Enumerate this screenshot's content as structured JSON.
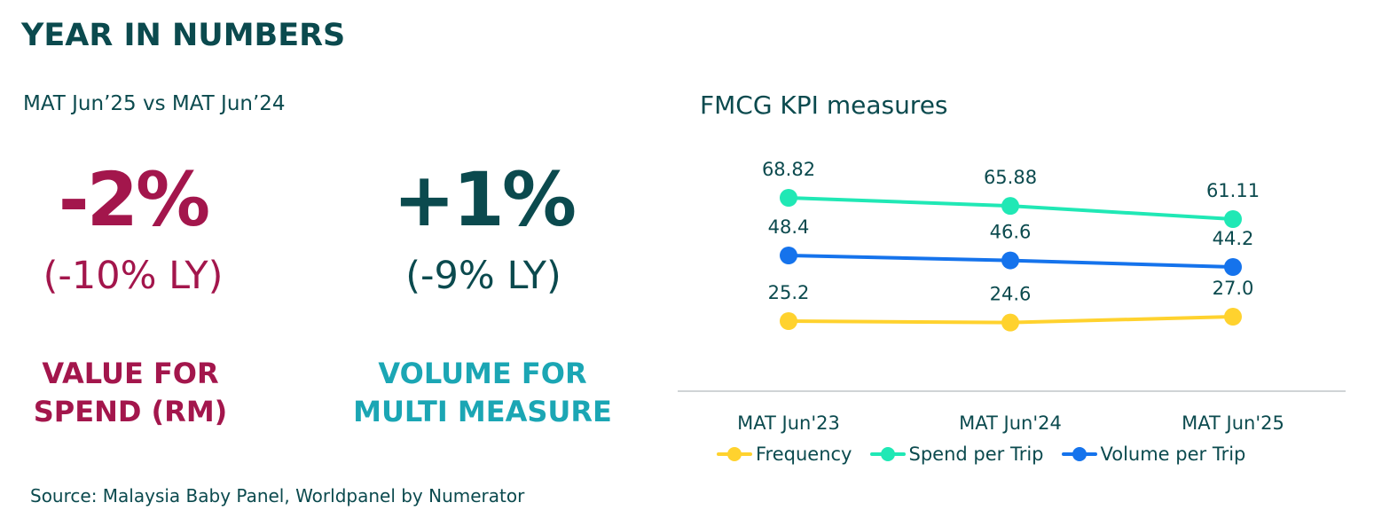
{
  "header": {
    "title": "YEAR IN NUMBERS",
    "subtitle": "MAT Jun’25 vs MAT Jun’24"
  },
  "kpis": [
    {
      "value": "-2%",
      "ly": "(-10% LY)",
      "label_line1": "VALUE FOR",
      "label_line2": "SPEND (RM)",
      "color": "#a3164c",
      "label_color": "#a3164c"
    },
    {
      "value": "+1%",
      "ly": "(-9% LY)",
      "label_line1": "VOLUME FOR",
      "label_line2": "MULTI MEASURE",
      "color": "#0b4a4e",
      "label_color": "#1ba6b4"
    }
  ],
  "footer": {
    "source": "Source: Malaysia Baby Panel, Worldpanel by Numerator"
  },
  "chart_data": {
    "type": "line",
    "title": "FMCG KPI measures",
    "categories": [
      "MAT Jun'23",
      "MAT Jun'24",
      "MAT Jun'25"
    ],
    "series": [
      {
        "name": "Frequency",
        "values": [
          25.2,
          24.6,
          27.0
        ],
        "labels": [
          "25.2",
          "24.6",
          "27.0"
        ],
        "color": "#ffd22e"
      },
      {
        "name": "Spend per Trip",
        "values": [
          68.82,
          65.88,
          61.11
        ],
        "labels": [
          "68.82",
          "65.88",
          "61.11"
        ],
        "color": "#20e8b5"
      },
      {
        "name": "Volume per Trip",
        "values": [
          48.4,
          46.6,
          44.2
        ],
        "labels": [
          "48.4",
          "46.6",
          "44.2"
        ],
        "color": "#1573ec"
      }
    ],
    "legend": "bottom",
    "grid": false
  }
}
